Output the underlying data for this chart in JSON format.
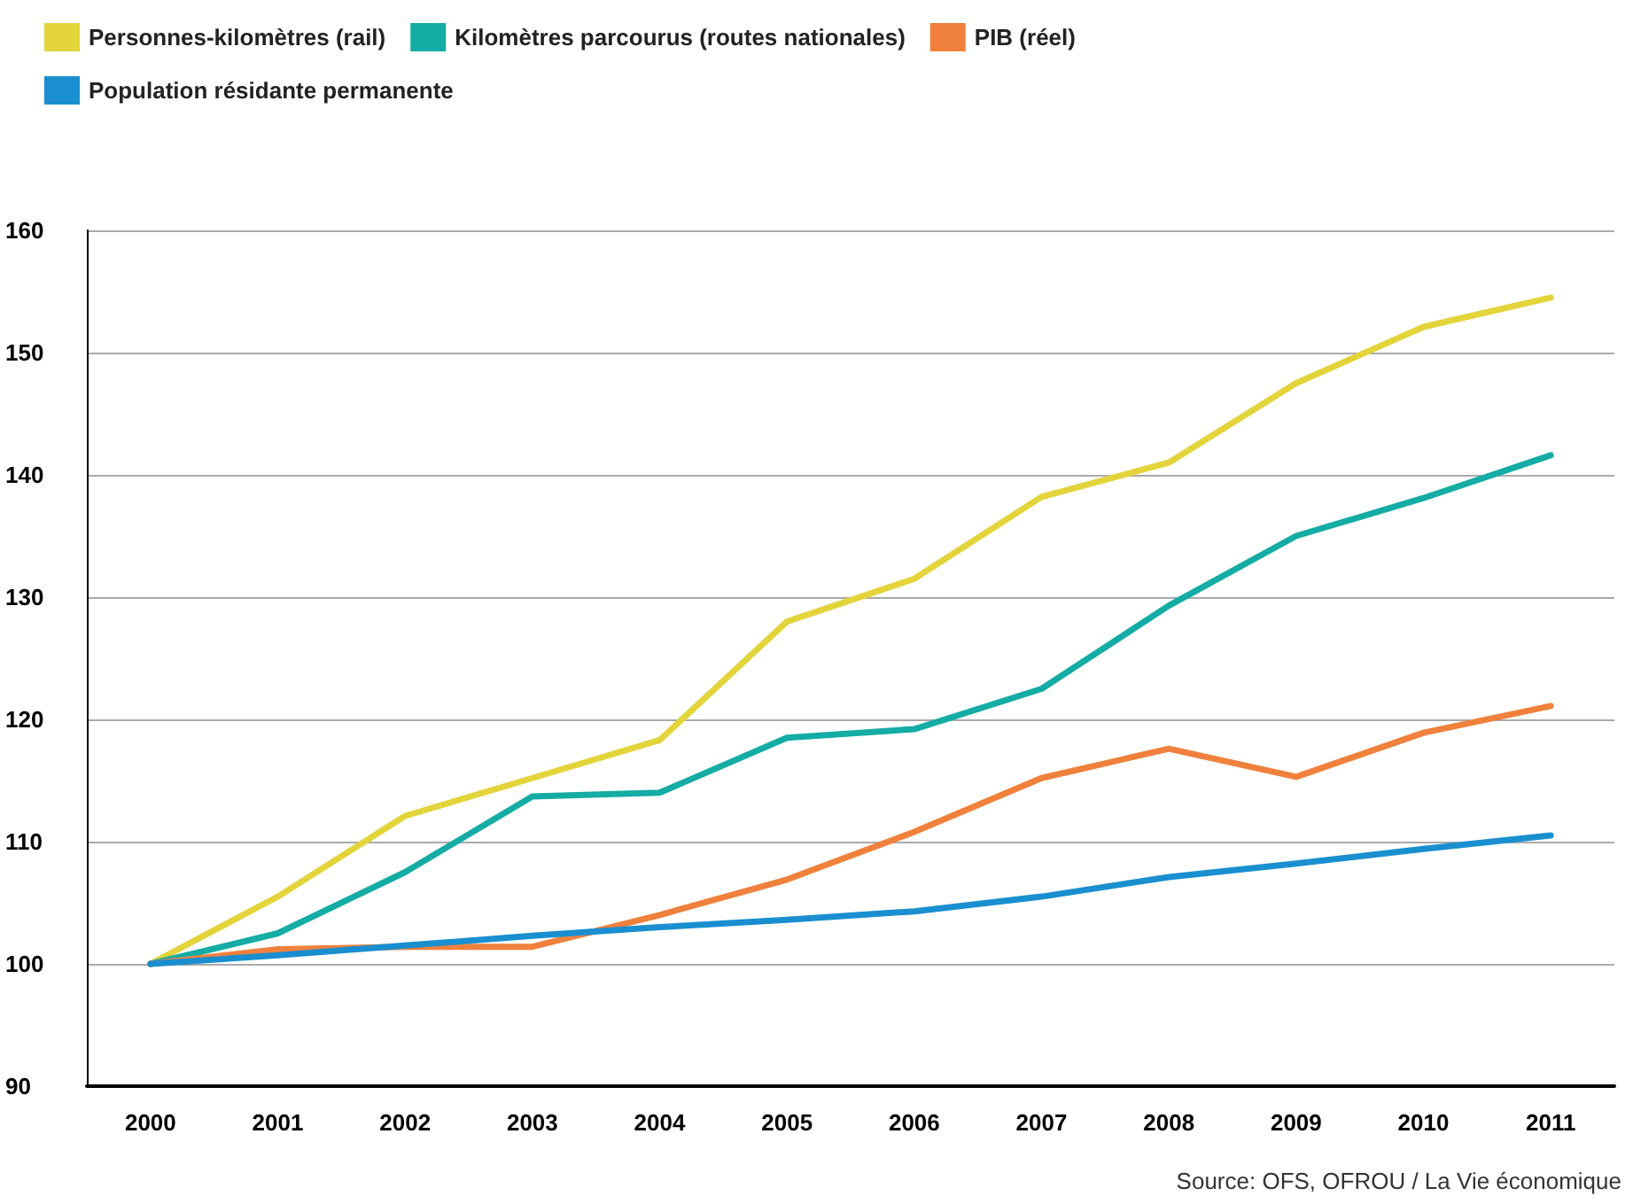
{
  "chart_data": {
    "type": "line",
    "categories": [
      "2000",
      "2001",
      "2002",
      "2003",
      "2004",
      "2005",
      "2006",
      "2007",
      "2008",
      "2009",
      "2010",
      "2011"
    ],
    "series": [
      {
        "name": "Personnes-kilomètres (rail)",
        "color": "#e3d43b",
        "values": [
          100,
          105.5,
          112.1,
          115.2,
          118.3,
          128,
          131.5,
          138.2,
          141,
          147.5,
          152.1,
          154.5
        ]
      },
      {
        "name": "Kilomètres parcourus (routes nationales)",
        "color": "#14aca4",
        "values": [
          100,
          102.5,
          107.5,
          113.7,
          114,
          118.5,
          119.2,
          122.5,
          129.3,
          135,
          138.1,
          141.6
        ]
      },
      {
        "name": "PIB (réel)",
        "color": "#f0813c",
        "values": [
          100,
          101.2,
          101.4,
          101.4,
          104,
          106.9,
          110.8,
          115.2,
          117.6,
          115.3,
          118.9,
          121.1
        ]
      },
      {
        "name": "Population résidante permanente",
        "color": "#1a8fd0",
        "values": [
          100,
          100.7,
          101.5,
          102.3,
          103,
          103.6,
          104.3,
          105.5,
          107.1,
          108.2,
          109.4,
          110.5
        ]
      }
    ],
    "ylim": [
      90,
      160
    ],
    "yticks": [
      90,
      100,
      110,
      120,
      130,
      140,
      150,
      160
    ],
    "grid": "y",
    "legend": "top left",
    "marker": "none",
    "line_style": "solid",
    "annotations": [
      "Source: OFS, OFROU / La Vie économique"
    ]
  }
}
